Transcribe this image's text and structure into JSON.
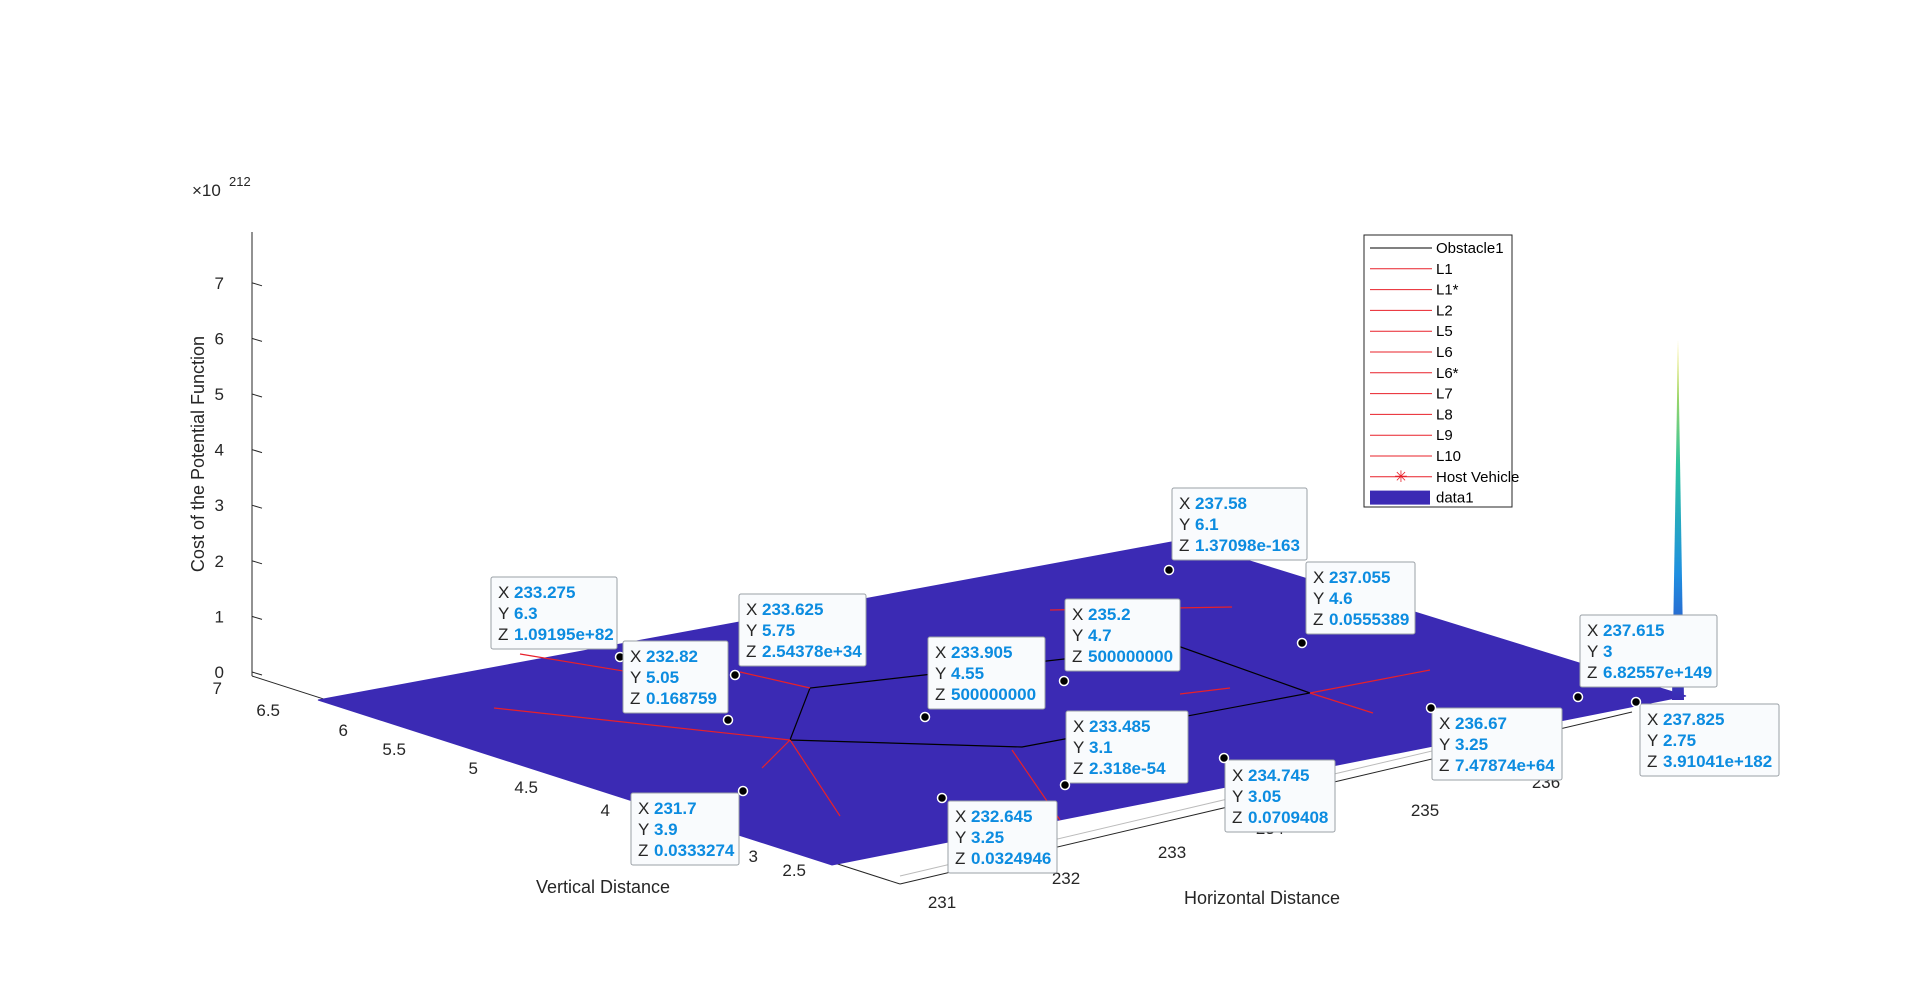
{
  "chart_data": {
    "type": "surface",
    "zlabel": "Cost of the Potential Function",
    "xlabel": "Horizontal Distance",
    "ylabel": "Vertical Distance",
    "z_exponent_label": "×10",
    "z_exponent": "212",
    "zlim": [
      0,
      7.9
    ],
    "z_ticks": [
      "0",
      "1",
      "2",
      "3",
      "4",
      "5",
      "6",
      "7"
    ],
    "x_ticks": [
      "231",
      "232",
      "233",
      "234",
      "235",
      "236"
    ],
    "y_ticks": [
      "2.5",
      "3",
      "3.5",
      "4",
      "4.5",
      "5",
      "5.5",
      "6",
      "6.5",
      "7"
    ],
    "surface_color": "#3b2ab4",
    "obstacle_color": "#000000",
    "lane_color": "#e8202a",
    "legend_position": "top-right",
    "legend": [
      {
        "label": "Obstacle1",
        "style": "black-line"
      },
      {
        "label": "L1",
        "style": "red-line"
      },
      {
        "label": "L1*",
        "style": "red-line"
      },
      {
        "label": "L2",
        "style": "red-line"
      },
      {
        "label": "L5",
        "style": "red-line"
      },
      {
        "label": "L6",
        "style": "red-line"
      },
      {
        "label": "L6*",
        "style": "red-line"
      },
      {
        "label": "L7",
        "style": "red-line"
      },
      {
        "label": "L8",
        "style": "red-line"
      },
      {
        "label": "L9",
        "style": "red-line"
      },
      {
        "label": "L10",
        "style": "red-line"
      },
      {
        "label": "Host Vehicle",
        "style": "red-star"
      },
      {
        "label": "data1",
        "style": "blue-patch"
      }
    ],
    "datatips": [
      {
        "x": "233.275",
        "y": "6.3",
        "z": "1.09195e+82"
      },
      {
        "x": "232.82",
        "y": "5.05",
        "z": "0.168759"
      },
      {
        "x": "233.625",
        "y": "5.75",
        "z": "2.54378e+34"
      },
      {
        "x": "233.905",
        "y": "4.55",
        "z": "500000000"
      },
      {
        "x": "235.2",
        "y": "4.7",
        "z": "500000000"
      },
      {
        "x": "237.58",
        "y": "6.1",
        "z": "1.37098e-163"
      },
      {
        "x": "237.055",
        "y": "4.6",
        "z": "0.0555389"
      },
      {
        "x": "237.615",
        "y": "3",
        "z": "6.82557e+149"
      },
      {
        "x": "237.825",
        "y": "2.75",
        "z": "3.91041e+182"
      },
      {
        "x": "233.485",
        "y": "3.1",
        "z": "2.318e-54"
      },
      {
        "x": "236.67",
        "y": "3.25",
        "z": "7.47874e+64"
      },
      {
        "x": "234.745",
        "y": "3.05",
        "z": "0.0709408"
      },
      {
        "x": "231.7",
        "y": "3.9",
        "z": "0.0333274"
      },
      {
        "x": "232.645",
        "y": "3.25",
        "z": "0.0324946"
      }
    ]
  }
}
